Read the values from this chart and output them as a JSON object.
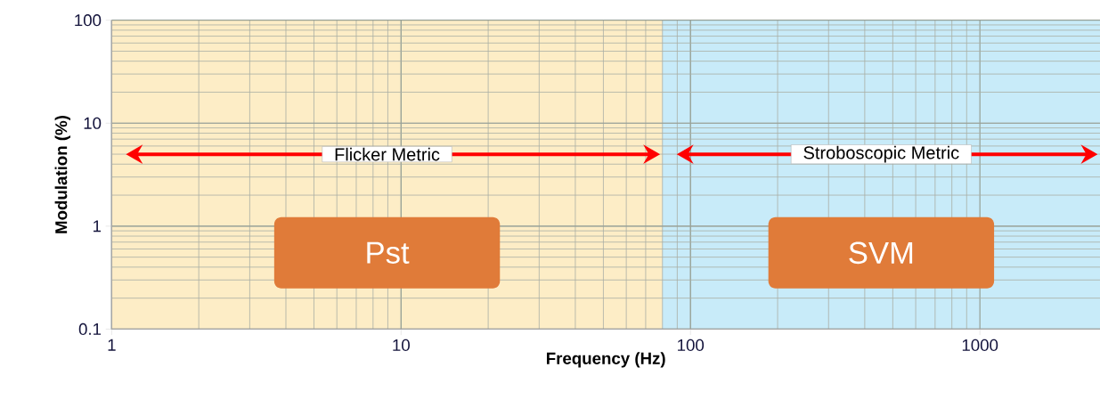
{
  "chart_data": {
    "type": "line",
    "xlabel": "Frequency (Hz)",
    "ylabel": "Modulation (%)",
    "log": "xy",
    "xlim": [
      1,
      2600
    ],
    "ylim": [
      0.1,
      100
    ],
    "xticks": [
      1,
      10,
      100,
      1000
    ],
    "yticks": [
      0.1,
      1,
      10,
      100
    ],
    "grid": true,
    "bands": [
      {
        "axis": "x",
        "from": 1,
        "to": 80,
        "label": "Pst",
        "color": "#fdedc6"
      },
      {
        "axis": "x",
        "from": 80,
        "to": 2600,
        "label": "SVM",
        "color": "#c8ebf9"
      }
    ],
    "annotations": [
      "Flicker Metric",
      "Stroboscopic Metric"
    ]
  }
}
